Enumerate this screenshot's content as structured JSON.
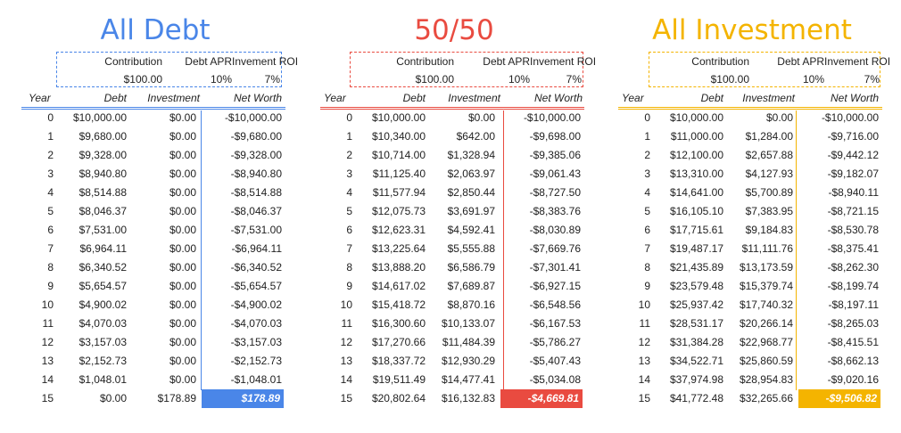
{
  "labels": {
    "contribution": "Contribution",
    "debt_apr": "Debt APR",
    "investment_roi": "Invement ROI",
    "year": "Year",
    "debt": "Debt",
    "investment": "Investment",
    "net_worth": "Net Worth"
  },
  "years": [
    "0",
    "1",
    "2",
    "3",
    "4",
    "5",
    "6",
    "7",
    "8",
    "9",
    "10",
    "11",
    "12",
    "13",
    "14",
    "15"
  ],
  "scenarios": [
    {
      "title": "All Debt",
      "color": "#4a86e8",
      "contribution": "$100.00",
      "debt_apr": "10%",
      "investment_roi": "7%",
      "debt": [
        "$10,000.00",
        "$9,680.00",
        "$9,328.00",
        "$8,940.80",
        "$8,514.88",
        "$8,046.37",
        "$7,531.00",
        "$6,964.11",
        "$6,340.52",
        "$5,654.57",
        "$4,900.02",
        "$4,070.03",
        "$3,157.03",
        "$2,152.73",
        "$1,048.01",
        "$0.00"
      ],
      "investment": [
        "$0.00",
        "$0.00",
        "$0.00",
        "$0.00",
        "$0.00",
        "$0.00",
        "$0.00",
        "$0.00",
        "$0.00",
        "$0.00",
        "$0.00",
        "$0.00",
        "$0.00",
        "$0.00",
        "$0.00",
        "$178.89"
      ],
      "net_worth": [
        "-$10,000.00",
        "-$9,680.00",
        "-$9,328.00",
        "-$8,940.80",
        "-$8,514.88",
        "-$8,046.37",
        "-$7,531.00",
        "-$6,964.11",
        "-$6,340.52",
        "-$5,654.57",
        "-$4,900.02",
        "-$4,070.03",
        "-$3,157.03",
        "-$2,152.73",
        "-$1,048.01",
        "$178.89"
      ]
    },
    {
      "title": "50/50",
      "color": "#e94b40",
      "contribution": "$100.00",
      "debt_apr": "10%",
      "investment_roi": "7%",
      "debt": [
        "$10,000.00",
        "$10,340.00",
        "$10,714.00",
        "$11,125.40",
        "$11,577.94",
        "$12,075.73",
        "$12,623.31",
        "$13,225.64",
        "$13,888.20",
        "$14,617.02",
        "$15,418.72",
        "$16,300.60",
        "$17,270.66",
        "$18,337.72",
        "$19,511.49",
        "$20,802.64"
      ],
      "investment": [
        "$0.00",
        "$642.00",
        "$1,328.94",
        "$2,063.97",
        "$2,850.44",
        "$3,691.97",
        "$4,592.41",
        "$5,555.88",
        "$6,586.79",
        "$7,689.87",
        "$8,870.16",
        "$10,133.07",
        "$11,484.39",
        "$12,930.29",
        "$14,477.41",
        "$16,132.83"
      ],
      "net_worth": [
        "-$10,000.00",
        "-$9,698.00",
        "-$9,385.06",
        "-$9,061.43",
        "-$8,727.50",
        "-$8,383.76",
        "-$8,030.89",
        "-$7,669.76",
        "-$7,301.41",
        "-$6,927.15",
        "-$6,548.56",
        "-$6,167.53",
        "-$5,786.27",
        "-$5,407.43",
        "-$5,034.08",
        "-$4,669.81"
      ]
    },
    {
      "title": "All Investment",
      "color": "#f4b400",
      "contribution": "$100.00",
      "debt_apr": "10%",
      "investment_roi": "7%",
      "debt": [
        "$10,000.00",
        "$11,000.00",
        "$12,100.00",
        "$13,310.00",
        "$14,641.00",
        "$16,105.10",
        "$17,715.61",
        "$19,487.17",
        "$21,435.89",
        "$23,579.48",
        "$25,937.42",
        "$28,531.17",
        "$31,384.28",
        "$34,522.71",
        "$37,974.98",
        "$41,772.48"
      ],
      "investment": [
        "$0.00",
        "$1,284.00",
        "$2,657.88",
        "$4,127.93",
        "$5,700.89",
        "$7,383.95",
        "$9,184.83",
        "$11,111.76",
        "$13,173.59",
        "$15,379.74",
        "$17,740.32",
        "$20,266.14",
        "$22,968.77",
        "$25,860.59",
        "$28,954.83",
        "$32,265.66"
      ],
      "net_worth": [
        "-$10,000.00",
        "-$9,716.00",
        "-$9,442.12",
        "-$9,182.07",
        "-$8,940.11",
        "-$8,721.15",
        "-$8,530.78",
        "-$8,375.41",
        "-$8,262.30",
        "-$8,199.74",
        "-$8,197.11",
        "-$8,265.03",
        "-$8,415.51",
        "-$8,662.13",
        "-$9,020.16",
        "-$9,506.82"
      ]
    }
  ]
}
